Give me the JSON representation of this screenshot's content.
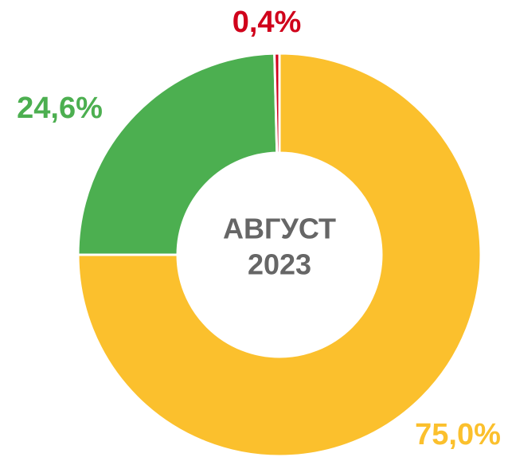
{
  "chart_data": {
    "type": "donut",
    "categories": [
      null,
      null,
      null
    ],
    "series": [
      {
        "values": [
          75.0,
          24.6,
          0.4
        ],
        "value_labels": [
          "75,0%",
          "24,6%",
          "0,4%"
        ],
        "colors": [
          "#fbc02d",
          "#4caf50",
          "#d0021b"
        ]
      }
    ],
    "center_text": [
      "АВГУСТ",
      "2023"
    ]
  }
}
